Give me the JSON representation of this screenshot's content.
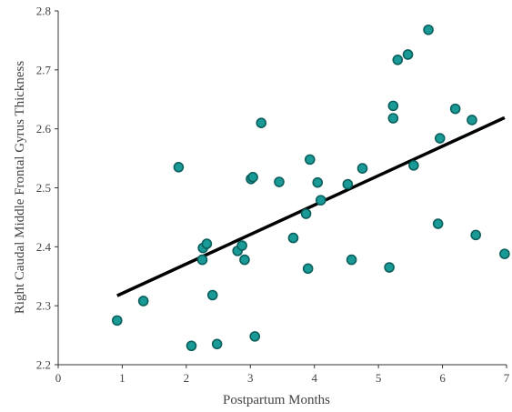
{
  "chart_data": {
    "type": "scatter",
    "xlabel": "Postpartum Months",
    "ylabel": "Right Caudal Middle Frontal Gyrus Thickness",
    "xlim": [
      0,
      7
    ],
    "ylim": [
      2.2,
      2.8
    ],
    "xticks": [
      0,
      1,
      2,
      3,
      4,
      5,
      6,
      7
    ],
    "yticks": [
      2.2,
      2.3,
      2.4,
      2.5,
      2.6,
      2.7,
      2.8
    ],
    "grid": false,
    "legend": "none",
    "point_color": "#1a9a96",
    "point_edge_color": "#0b5f5c",
    "trend_color": "#000000",
    "points": [
      {
        "x": 0.92,
        "y": 2.275
      },
      {
        "x": 1.33,
        "y": 2.308
      },
      {
        "x": 1.88,
        "y": 2.535
      },
      {
        "x": 2.08,
        "y": 2.232
      },
      {
        "x": 2.25,
        "y": 2.378
      },
      {
        "x": 2.26,
        "y": 2.398
      },
      {
        "x": 2.32,
        "y": 2.405
      },
      {
        "x": 2.41,
        "y": 2.318
      },
      {
        "x": 2.48,
        "y": 2.235
      },
      {
        "x": 2.8,
        "y": 2.393
      },
      {
        "x": 2.87,
        "y": 2.402
      },
      {
        "x": 2.91,
        "y": 2.378
      },
      {
        "x": 3.01,
        "y": 2.515
      },
      {
        "x": 3.04,
        "y": 2.518
      },
      {
        "x": 3.07,
        "y": 2.248
      },
      {
        "x": 3.17,
        "y": 2.61
      },
      {
        "x": 3.45,
        "y": 2.51
      },
      {
        "x": 3.67,
        "y": 2.415
      },
      {
        "x": 3.87,
        "y": 2.456
      },
      {
        "x": 3.9,
        "y": 2.363
      },
      {
        "x": 3.93,
        "y": 2.548
      },
      {
        "x": 4.05,
        "y": 2.509
      },
      {
        "x": 4.1,
        "y": 2.479
      },
      {
        "x": 4.52,
        "y": 2.506
      },
      {
        "x": 4.58,
        "y": 2.378
      },
      {
        "x": 4.75,
        "y": 2.533
      },
      {
        "x": 5.17,
        "y": 2.365
      },
      {
        "x": 5.23,
        "y": 2.618
      },
      {
        "x": 5.23,
        "y": 2.639
      },
      {
        "x": 5.3,
        "y": 2.717
      },
      {
        "x": 5.46,
        "y": 2.726
      },
      {
        "x": 5.55,
        "y": 2.538
      },
      {
        "x": 5.78,
        "y": 2.768
      },
      {
        "x": 5.93,
        "y": 2.439
      },
      {
        "x": 5.96,
        "y": 2.584
      },
      {
        "x": 6.2,
        "y": 2.634
      },
      {
        "x": 6.46,
        "y": 2.615
      },
      {
        "x": 6.52,
        "y": 2.42
      },
      {
        "x": 6.97,
        "y": 2.388
      }
    ],
    "trend_line": {
      "x": [
        0.92,
        6.97
      ],
      "y": [
        2.317,
        2.619
      ]
    }
  }
}
